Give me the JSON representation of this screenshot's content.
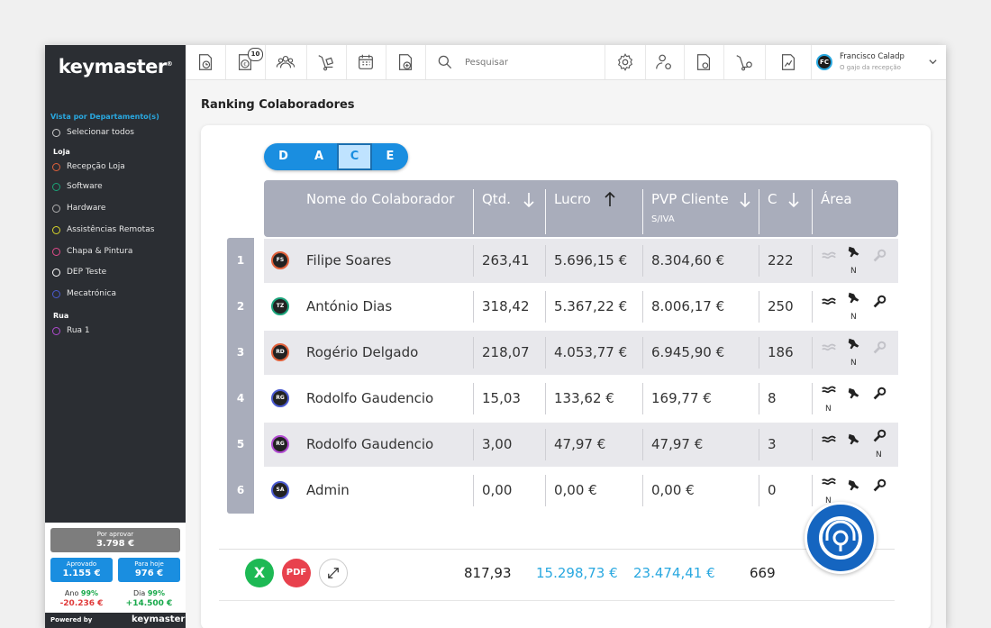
{
  "app": {
    "brand": "keymaster",
    "brand_mark": "®"
  },
  "sidebar": {
    "section_title": "Vista por Departamento(s)",
    "select_all": "Selecionar todos",
    "groups": [
      {
        "label": "Loja",
        "items": [
          {
            "label": "Recepção Loja",
            "color": "#e0603a"
          },
          {
            "label": "Software",
            "color": "#1aa37a"
          },
          {
            "label": "Hardware",
            "color": "#b0b0b0"
          },
          {
            "label": "Assistências Remotas",
            "color": "#d9d62a"
          },
          {
            "label": "Chapa & Pintura",
            "color": "#e04a8a"
          },
          {
            "label": "DEP Teste",
            "color": "#ffffff"
          },
          {
            "label": "Mecatrónica",
            "color": "#4a5ad0"
          }
        ]
      },
      {
        "label": "Rua",
        "items": [
          {
            "label": "Rua 1",
            "color": "#b04ad0"
          }
        ]
      }
    ],
    "summary": {
      "pending_label": "Por aprovar",
      "pending_value": "3.798 €",
      "approved_label": "Aprovado",
      "approved_value": "1.155 €",
      "today_label": "Para hoje",
      "today_value": "976 €",
      "year_label": "Ano",
      "year_pct": "99%",
      "year_value": "-20.236 €",
      "day_label": "Dia",
      "day_pct": "99%",
      "day_value": "+14.500 €"
    },
    "powered_by": "Powered by",
    "powered_brand": "keymaster"
  },
  "topbar": {
    "badge_count": "10",
    "search_placeholder": "Pesquisar",
    "user_initials": "FC",
    "user_name": "Francisco Caladp",
    "user_role": "O gajo da recepção"
  },
  "page": {
    "title": "Ranking Colaboradores"
  },
  "segments": [
    {
      "label": "D",
      "active": false
    },
    {
      "label": "A",
      "active": false
    },
    {
      "label": "C",
      "active": true
    },
    {
      "label": "E",
      "active": false
    }
  ],
  "table": {
    "headers": {
      "name": "Nome do Colaborador",
      "qty": "Qtd.",
      "profit": "Lucro",
      "pvp": "PVP Cliente",
      "pvp_sub": "S/IVA",
      "c": "C",
      "area": "Área"
    },
    "rows": [
      {
        "rank": "1",
        "initials": "FS",
        "ring": "#e0603a",
        "name": "Filipe Soares",
        "qty": "263,41",
        "profit": "5.696,15 €",
        "pvp": "8.304,60 €",
        "c": "222",
        "area": [
          "faded",
          "n",
          "faded"
        ]
      },
      {
        "rank": "2",
        "initials": "TZ",
        "ring": "#1aa37a",
        "name": "António Dias",
        "qty": "318,42",
        "profit": "5.367,22 €",
        "pvp": "8.006,17 €",
        "c": "250",
        "area": [
          "on",
          "n",
          "on"
        ]
      },
      {
        "rank": "3",
        "initials": "RD",
        "ring": "#e0603a",
        "name": "Rogério Delgado",
        "qty": "218,07",
        "profit": "4.053,77 €",
        "pvp": "6.945,90 €",
        "c": "186",
        "area": [
          "faded",
          "n",
          "faded"
        ]
      },
      {
        "rank": "4",
        "initials": "RG",
        "ring": "#4a5ad0",
        "name": "Rodolfo Gaudencio",
        "qty": "15,03",
        "profit": "133,62 €",
        "pvp": "169,77 €",
        "c": "8",
        "area": [
          "n",
          "on",
          "on"
        ]
      },
      {
        "rank": "5",
        "initials": "RG",
        "ring": "#b04ad0",
        "name": "Rodolfo Gaudencio",
        "qty": "3,00",
        "profit": "47,97 €",
        "pvp": "47,97 €",
        "c": "3",
        "area": [
          "on",
          "on",
          "n"
        ]
      },
      {
        "rank": "6",
        "initials": "SA",
        "ring": "#4a5ad0",
        "name": "Admin",
        "qty": "0,00",
        "profit": "0,00 €",
        "pvp": "0,00 €",
        "c": "0",
        "area": [
          "n",
          "on",
          "on"
        ]
      }
    ],
    "n_mark": "N",
    "totals": {
      "qty": "817,93",
      "profit": "15.298,73 €",
      "pvp": "23.474,41 €",
      "c": "669"
    }
  },
  "actions": {
    "excel": "X",
    "pdf": "PDF"
  },
  "colors": {
    "accent": "#1a8ee0",
    "total_blue": "#29a8e0",
    "positive": "#17a84a",
    "negative": "#e03a3a"
  }
}
